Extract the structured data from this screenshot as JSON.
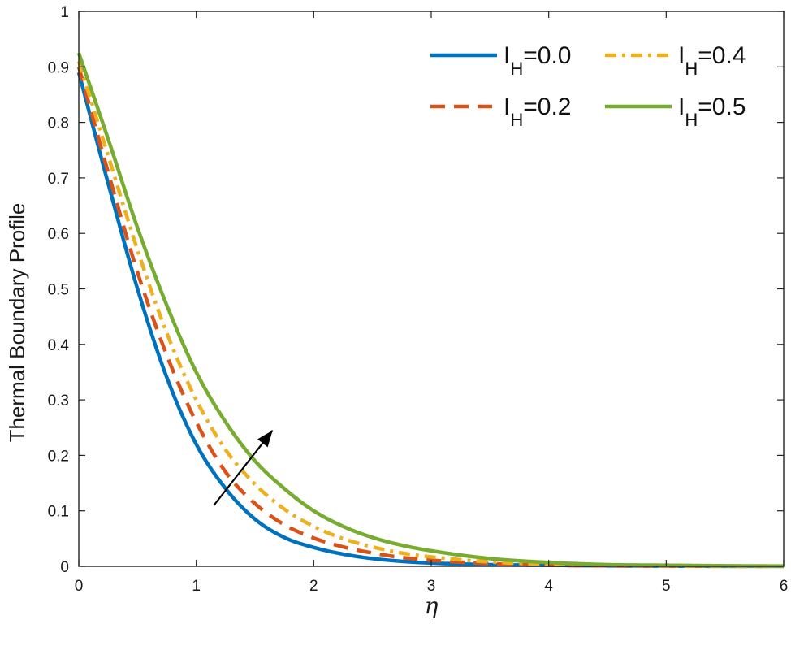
{
  "chart_data": {
    "type": "line",
    "title": "",
    "xlabel": "η",
    "ylabel": "Thermal Boundary Profile",
    "xlim": [
      0,
      6
    ],
    "ylim": [
      0,
      1
    ],
    "xticks": [
      0,
      1,
      2,
      3,
      4,
      5,
      6
    ],
    "yticks": [
      0,
      0.1,
      0.2,
      0.3,
      0.4,
      0.5,
      0.6,
      0.7,
      0.8,
      0.9,
      1
    ],
    "ytick_labels": [
      "0",
      "0.1",
      "0.2",
      "0.3",
      "0.4",
      "0.5",
      "0.6",
      "0.7",
      "0.8",
      "0.9",
      "1"
    ],
    "grid": false,
    "legend_position": "top-right",
    "legend_columns": 2,
    "x": [
      0,
      0.25,
      0.5,
      0.75,
      1.0,
      1.25,
      1.5,
      1.75,
      2.0,
      2.25,
      2.5,
      2.75,
      3.0,
      3.5,
      4.0,
      4.5,
      5.0,
      5.5,
      6.0
    ],
    "series": [
      {
        "name": "I",
        "subscript": "H",
        "suffix": "=0.0",
        "color": "#0072BD",
        "dash": "solid",
        "values": [
          0.89,
          0.69,
          0.5,
          0.34,
          0.22,
          0.14,
          0.085,
          0.052,
          0.034,
          0.022,
          0.014,
          0.009,
          0.006,
          0.003,
          0.002,
          0.001,
          0.0005,
          0.0002,
          0.0001
        ]
      },
      {
        "name": "I",
        "subscript": "H",
        "suffix": "=0.2",
        "color": "#D95319",
        "dash": "dashed",
        "values": [
          0.9,
          0.71,
          0.53,
          0.38,
          0.26,
          0.17,
          0.113,
          0.075,
          0.051,
          0.035,
          0.024,
          0.016,
          0.011,
          0.005,
          0.002,
          0.001,
          0.0006,
          0.0003,
          0.0002
        ]
      },
      {
        "name": "I",
        "subscript": "H",
        "suffix": "=0.4",
        "color": "#EDB120",
        "dash": "dashdot",
        "values": [
          0.91,
          0.74,
          0.57,
          0.42,
          0.3,
          0.21,
          0.148,
          0.103,
          0.072,
          0.05,
          0.035,
          0.024,
          0.017,
          0.008,
          0.004,
          0.002,
          0.001,
          0.0005,
          0.0003
        ]
      },
      {
        "name": "I",
        "subscript": "H",
        "suffix": "=0.5",
        "color": "#77AC30",
        "dash": "solid",
        "values": [
          0.925,
          0.77,
          0.61,
          0.47,
          0.35,
          0.26,
          0.19,
          0.14,
          0.1,
          0.072,
          0.052,
          0.038,
          0.028,
          0.014,
          0.007,
          0.003,
          0.002,
          0.001,
          0.0005
        ]
      }
    ],
    "annotations": [
      {
        "type": "arrow",
        "from": [
          1.15,
          0.11
        ],
        "to": [
          1.65,
          0.245
        ],
        "color": "#000000"
      }
    ]
  }
}
